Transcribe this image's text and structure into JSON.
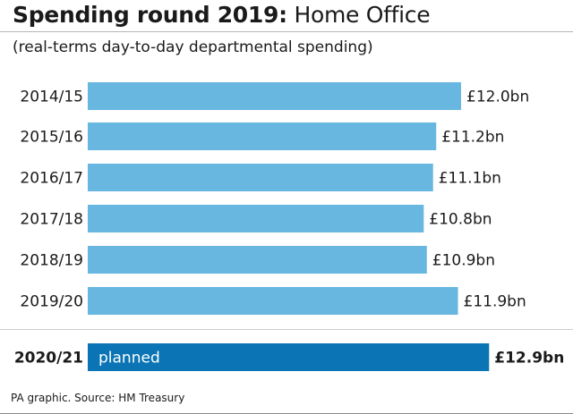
{
  "title_bold": "Spending round 2019:",
  "title_rest": "Home Office",
  "subtitle": "(real-terms day-to-day departmental spending)",
  "source": "PA graphic. Source: HM Treasury",
  "colors": {
    "bar": "#67b7e1",
    "bar_highlight": "#0a74b5",
    "text": "#1a1a1a"
  },
  "chart_data": {
    "type": "bar",
    "orientation": "horizontal",
    "title": "Spending round 2019: Home Office",
    "subtitle": "(real-terms day-to-day departmental spending)",
    "unit": "£bn",
    "categories": [
      "2014/15",
      "2015/16",
      "2016/17",
      "2017/18",
      "2018/19",
      "2019/20",
      "2020/21"
    ],
    "values": [
      12.0,
      11.2,
      11.1,
      10.8,
      10.9,
      11.9,
      12.9
    ],
    "labels": [
      "£12.0bn",
      "£11.2bn",
      "£11.1bn",
      "£10.8bn",
      "£10.9bn",
      "£11.9bn",
      "£12.9bn"
    ],
    "highlight_index": 6,
    "highlight_note": "planned",
    "grid": false,
    "legend": "none"
  }
}
